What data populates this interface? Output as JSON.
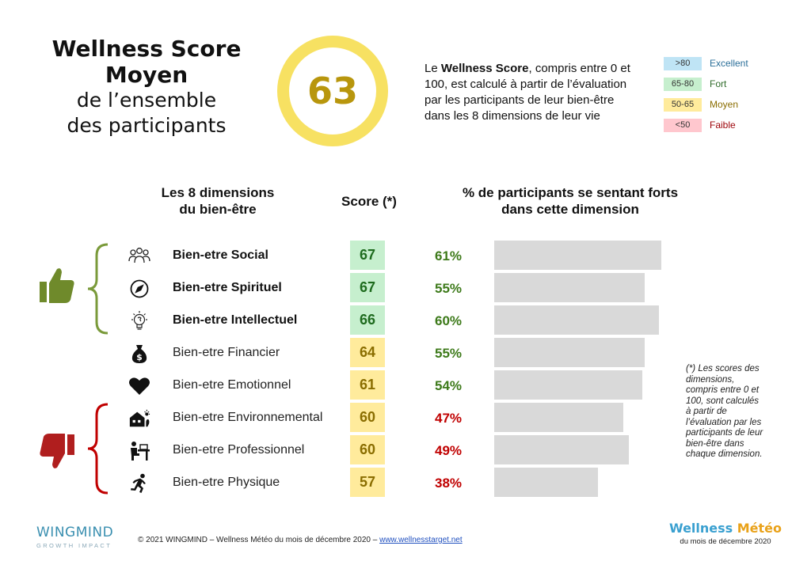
{
  "title": {
    "line1": "Wellness Score",
    "line2": "Moyen",
    "line3": "de l’ensemble",
    "line4": "des participants"
  },
  "score": {
    "value": "63",
    "color": "#f7e162"
  },
  "description": {
    "prefix": "Le ",
    "bold": "Wellness Score",
    "rest": ", compris entre 0 et 100, est calculé à partir de l’évaluation par les participants de leur bien-être dans les 8 dimensions de leur vie"
  },
  "legend": [
    {
      "range": ">80",
      "label": "Excellent",
      "swatch": "#bfe4f5",
      "text_color": "#2b6f99"
    },
    {
      "range": "65-80",
      "label": "Fort",
      "swatch": "#c6efce",
      "text_color": "#2f6b2a"
    },
    {
      "range": "50-65",
      "label": "Moyen",
      "swatch": "#ffeb9c",
      "text_color": "#8a6d00"
    },
    {
      "range": "<50",
      "label": "Faible",
      "swatch": "#ffc7ce",
      "text_color": "#9c0006"
    }
  ],
  "headers": {
    "dimensions_l1": "Les 8 dimensions",
    "dimensions_l2": "du bien-être",
    "score": "Score (*)",
    "pct_l1": "% de participants se sentant forts",
    "pct_l2": "dans cette dimension"
  },
  "chart_data": {
    "type": "bar",
    "categories": [
      "Bien-etre Social",
      "Bien-etre Spirituel",
      "Bien-etre Intellectuel",
      "Bien-etre Financier",
      "Bien-etre Emotionnel",
      "Bien-etre Environnemental",
      "Bien-etre Professionnel",
      "Bien-etre Physique"
    ],
    "scores": [
      67,
      67,
      66,
      64,
      61,
      60,
      60,
      57
    ],
    "values": [
      61,
      55,
      60,
      55,
      54,
      47,
      49,
      38
    ],
    "value_labels": [
      "61%",
      "55%",
      "60%",
      "55%",
      "54%",
      "47%",
      "49%",
      "38%"
    ],
    "icons": [
      "people-icon",
      "compass-icon",
      "lightbulb-icon",
      "money-bag-icon",
      "heart-icon",
      "house-icon",
      "desk-worker-icon",
      "runner-icon"
    ],
    "bold_rows": [
      true,
      true,
      true,
      false,
      false,
      false,
      false,
      false
    ],
    "xlim": [
      0,
      100
    ],
    "bar_color": "#d9d9d9",
    "score_colors": {
      "strong": "#c6efce",
      "medium": "#ffeb9c"
    },
    "pct_colors": {
      "good": "#3d7a1a",
      "bad": "#c00000"
    }
  },
  "footnote": "(*) Les scores des dimensions, compris entre 0 et 100, sont calculés à partir de l’évaluation par les participants de leur bien-être dans chaque dimension.",
  "footer": {
    "brand": "WINGMIND",
    "brand_sub": "GROWTH IMPACT",
    "copyright": "© 2021 WINGMIND – Wellness Météo du mois de décembre 2020 – ",
    "link": "www.wellnesstarget.net",
    "logo_word1": "Wellness",
    "logo_word2": "Météo",
    "logo_sub": "du mois de décembre 2020"
  }
}
